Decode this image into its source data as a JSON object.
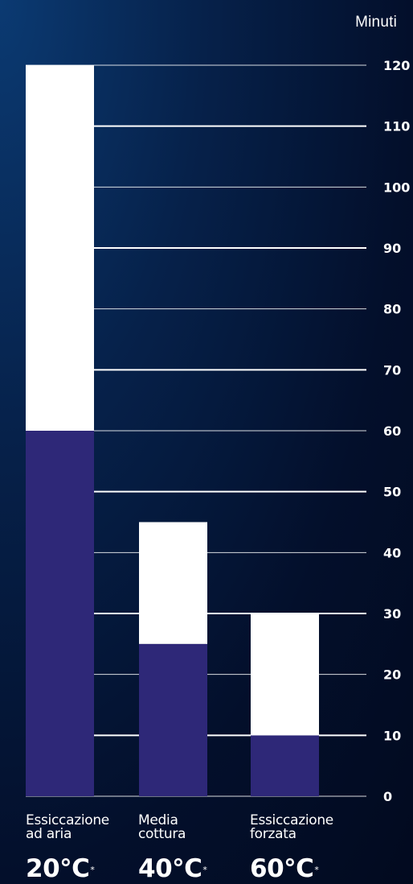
{
  "chart_data": {
    "type": "bar",
    "stacked": true,
    "unit_label": "Minuti",
    "categories": [
      "Essiccazione\nad aria",
      "Media\ncottura",
      "Essiccazione\nforzata"
    ],
    "temperatures": [
      "20°C",
      "40°C",
      "60°C"
    ],
    "temperature_marker": "*",
    "series": [
      {
        "values": [
          60,
          25,
          10
        ],
        "color": "#2e2878"
      },
      {
        "values": [
          60,
          20,
          20
        ],
        "color": "#ffffff"
      }
    ],
    "totals": [
      120,
      45,
      30
    ],
    "ylim": [
      0,
      120
    ],
    "yticks": [
      0,
      10,
      20,
      30,
      40,
      50,
      60,
      70,
      80,
      90,
      100,
      110,
      120
    ],
    "tick_labels": [
      "0",
      "10",
      "20",
      "30",
      "40",
      "50",
      "60",
      "70",
      "80",
      "90",
      "100",
      "110",
      "120"
    ],
    "grid": true,
    "axis_position": "right"
  }
}
